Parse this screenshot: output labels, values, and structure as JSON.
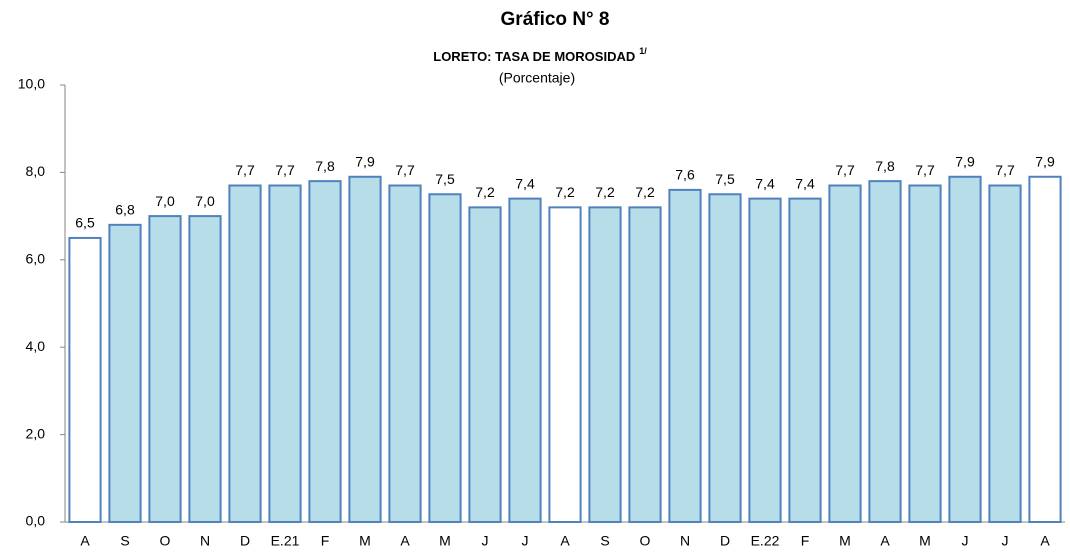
{
  "chart_data": {
    "type": "bar",
    "title": "Gráfico N° 8",
    "subtitle": "LORETO: TASA DE MOROSIDAD",
    "subtitle_note": "1/",
    "unit_label": "(Porcentaje)",
    "categories": [
      "A",
      "S",
      "O",
      "N",
      "D",
      "E.21",
      "F",
      "M",
      "A",
      "M",
      "J",
      "J",
      "A",
      "S",
      "O",
      "N",
      "D",
      "E.22",
      "F",
      "M",
      "A",
      "M",
      "J",
      "J",
      "A"
    ],
    "values": [
      6.5,
      6.8,
      7.0,
      7.0,
      7.7,
      7.7,
      7.8,
      7.9,
      7.7,
      7.5,
      7.2,
      7.4,
      7.2,
      7.2,
      7.2,
      7.6,
      7.5,
      7.4,
      7.4,
      7.7,
      7.8,
      7.7,
      7.9,
      7.7,
      7.9
    ],
    "value_labels": [
      "6,5",
      "6,8",
      "7,0",
      "7,0",
      "7,7",
      "7,7",
      "7,8",
      "7,9",
      "7,7",
      "7,5",
      "7,2",
      "7,4",
      "7,2",
      "7,2",
      "7,2",
      "7,6",
      "7,5",
      "7,4",
      "7,4",
      "7,7",
      "7,8",
      "7,7",
      "7,9",
      "7,7",
      "7,9"
    ],
    "colors": [
      "#ffffff",
      "#b7dde8",
      "#b7dde8",
      "#b7dde8",
      "#b7dde8",
      "#b7dde8",
      "#b7dde8",
      "#b7dde8",
      "#b7dde8",
      "#b7dde8",
      "#b7dde8",
      "#b7dde8",
      "#ffffff",
      "#b7dde8",
      "#b7dde8",
      "#b7dde8",
      "#b7dde8",
      "#b7dde8",
      "#b7dde8",
      "#b7dde8",
      "#b7dde8",
      "#b7dde8",
      "#b7dde8",
      "#b7dde8",
      "#ffffff"
    ],
    "edge_color": "#4f81bd",
    "ylim": [
      0,
      10
    ],
    "yticks": [
      {
        "value": 0,
        "label": "0,0"
      },
      {
        "value": 2,
        "label": "2,0"
      },
      {
        "value": 4,
        "label": "4,0"
      },
      {
        "value": 6,
        "label": "6,0"
      },
      {
        "value": 8,
        "label": "8,0"
      },
      {
        "value": 10,
        "label": "10,0"
      }
    ],
    "grid": false
  }
}
